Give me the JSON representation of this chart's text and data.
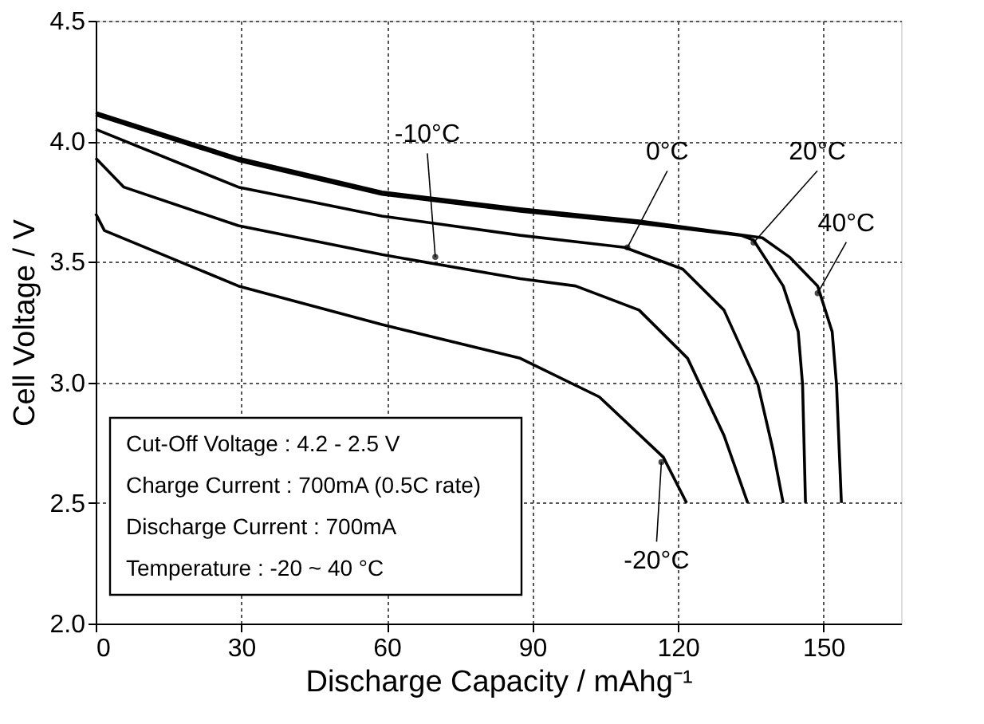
{
  "chart_data": {
    "type": "line",
    "xlabel": "Discharge Capacity / mAhg⁻¹",
    "ylabel": "Cell Voltage / V",
    "xlim": [
      0,
      166
    ],
    "xticks": [
      0,
      30,
      60,
      90,
      120,
      150
    ],
    "ylim": [
      2.0,
      4.5
    ],
    "yticks": [
      {
        "value": 2.0,
        "label": "2.0"
      },
      {
        "value": 2.5,
        "label": "2.5"
      },
      {
        "value": 3.0,
        "label": "3.0"
      },
      {
        "value": 3.5,
        "label": "3.5"
      },
      {
        "value": 4.0,
        "label": "4.0"
      },
      {
        "value": 4.5,
        "label": "4.5"
      }
    ],
    "grid": true,
    "marker": "none",
    "line_style": "solid",
    "series": [
      {
        "color": "#000000",
        "x": [
          0,
          29.4,
          59,
          87.5,
          112,
          137.4,
          143,
          148.8,
          151.8,
          152.7,
          153.7
        ],
        "values": [
          4.12,
          3.93,
          3.79,
          3.72,
          3.67,
          3.6,
          3.52,
          3.4,
          3.21,
          2.99,
          2.5
        ]
      },
      {
        "color": "#000000",
        "x": [
          0,
          29.4,
          59,
          87.5,
          112,
          133,
          135.6,
          141.7,
          144.8,
          145.7,
          146.3
        ],
        "values": [
          4.11,
          3.92,
          3.78,
          3.71,
          3.66,
          3.61,
          3.59,
          3.4,
          3.21,
          2.99,
          2.5
        ]
      },
      {
        "color": "#000000",
        "x": [
          0,
          29.4,
          59,
          87.5,
          109,
          121,
          129.5,
          136.5,
          139.6,
          141.7
        ],
        "values": [
          4.05,
          3.81,
          3.69,
          3.61,
          3.56,
          3.47,
          3.3,
          2.99,
          2.72,
          2.5
        ]
      },
      {
        "color": "#000000",
        "x": [
          0,
          5.8,
          29.4,
          59,
          87.5,
          98.9,
          112,
          122,
          129.5,
          134.4
        ],
        "values": [
          3.93,
          3.81,
          3.65,
          3.53,
          3.43,
          3.4,
          3.3,
          3.1,
          2.78,
          2.5
        ]
      },
      {
        "color": "#000000",
        "x": [
          0,
          1.8,
          29.4,
          59,
          87.5,
          103.8,
          117,
          121.8
        ],
        "values": [
          3.7,
          3.63,
          3.4,
          3.24,
          3.1,
          2.94,
          2.69,
          2.5
        ]
      }
    ],
    "annotations": [
      {
        "text": "40°C",
        "x": 148.8,
        "y": 3.37
      },
      {
        "text": "20°C",
        "x": 135.6,
        "y": 3.58
      },
      {
        "text": "0°C",
        "x": 109.6,
        "y": 3.56
      },
      {
        "text": "-10°C",
        "x": 70,
        "y": 3.52
      },
      {
        "text": "-20°C",
        "x": 116.6,
        "y": 2.67
      },
      "Cut-Off Voltage : 4.2 - 2.5 V",
      "Charge Current : 700mA (0.5C rate)",
      "Discharge Current : 700mA",
      "Temperature : -20 ~ 40 °C"
    ]
  }
}
